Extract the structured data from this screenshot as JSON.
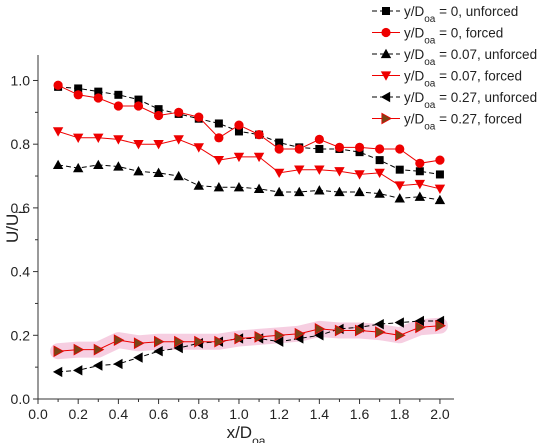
{
  "chart_data": {
    "type": "line",
    "title": "",
    "xlabel": {
      "base": "x/D",
      "sub": "oa"
    },
    "ylabel": {
      "base": "U/U",
      "sub": "i"
    },
    "xlim": [
      0.0,
      2.07
    ],
    "ylim": [
      0.0,
      1.08
    ],
    "xticks": [
      "0.0",
      "0.2",
      "0.4",
      "0.6",
      "0.8",
      "1.0",
      "1.2",
      "1.4",
      "1.6",
      "1.8",
      "2.0"
    ],
    "yticks": [
      "0.0",
      "0.2",
      "0.4",
      "0.6",
      "0.8",
      "1.0"
    ],
    "grid": false,
    "legend_position": "top-right",
    "x": [
      0.1,
      0.2,
      0.3,
      0.4,
      0.5,
      0.6,
      0.7,
      0.8,
      0.9,
      1.0,
      1.1,
      1.2,
      1.3,
      1.4,
      1.5,
      1.6,
      1.7,
      1.8,
      1.9,
      2.0
    ],
    "series": [
      {
        "name": {
          "base": "y/D",
          "sub": "oa",
          "rest": " = 0, unforced"
        },
        "color": "#000000",
        "marker": "square",
        "values": [
          0.98,
          0.975,
          0.965,
          0.955,
          0.94,
          0.91,
          0.895,
          0.88,
          0.865,
          0.84,
          0.83,
          0.805,
          0.79,
          0.785,
          0.785,
          0.775,
          0.75,
          0.72,
          0.715,
          0.705
        ]
      },
      {
        "name": {
          "base": "y/D",
          "sub": "oa",
          "rest": " = 0, forced"
        },
        "color": "#ee0000",
        "marker": "circle",
        "values": [
          0.985,
          0.955,
          0.945,
          0.92,
          0.92,
          0.89,
          0.9,
          0.885,
          0.82,
          0.86,
          0.83,
          0.785,
          0.785,
          0.815,
          0.79,
          0.79,
          0.785,
          0.785,
          0.74,
          0.75
        ]
      },
      {
        "name": {
          "base": "y/D",
          "sub": "oa",
          "rest": " = 0.07, unforced"
        },
        "color": "#000000",
        "marker": "triangle-up",
        "values": [
          0.735,
          0.725,
          0.735,
          0.73,
          0.715,
          0.71,
          0.7,
          0.67,
          0.665,
          0.665,
          0.66,
          0.65,
          0.65,
          0.655,
          0.65,
          0.65,
          0.645,
          0.63,
          0.635,
          0.625
        ]
      },
      {
        "name": {
          "base": "y/D",
          "sub": "oa",
          "rest": " = 0.07, forced"
        },
        "color": "#ee0000",
        "marker": "triangle-down",
        "values": [
          0.84,
          0.82,
          0.82,
          0.815,
          0.8,
          0.8,
          0.815,
          0.79,
          0.75,
          0.76,
          0.76,
          0.71,
          0.72,
          0.72,
          0.715,
          0.705,
          0.71,
          0.67,
          0.675,
          0.66
        ]
      },
      {
        "name": {
          "base": "y/D",
          "sub": "oa",
          "rest": " = 0.27, unforced"
        },
        "color": "#000000",
        "marker": "triangle-left",
        "values": [
          0.085,
          0.09,
          0.105,
          0.11,
          0.13,
          0.15,
          0.16,
          0.175,
          0.18,
          0.19,
          0.19,
          0.18,
          0.19,
          0.2,
          0.22,
          0.225,
          0.235,
          0.24,
          0.245,
          0.245
        ]
      },
      {
        "name": {
          "base": "y/D",
          "sub": "oa",
          "rest": " = 0.27, forced"
        },
        "color": "#ee0000",
        "marker": "triangle-right",
        "band_color": "#f5c6dc",
        "values": [
          0.15,
          0.155,
          0.155,
          0.185,
          0.175,
          0.18,
          0.18,
          0.18,
          0.18,
          0.19,
          0.195,
          0.2,
          0.205,
          0.22,
          0.215,
          0.215,
          0.21,
          0.2,
          0.225,
          0.23
        ]
      }
    ]
  }
}
